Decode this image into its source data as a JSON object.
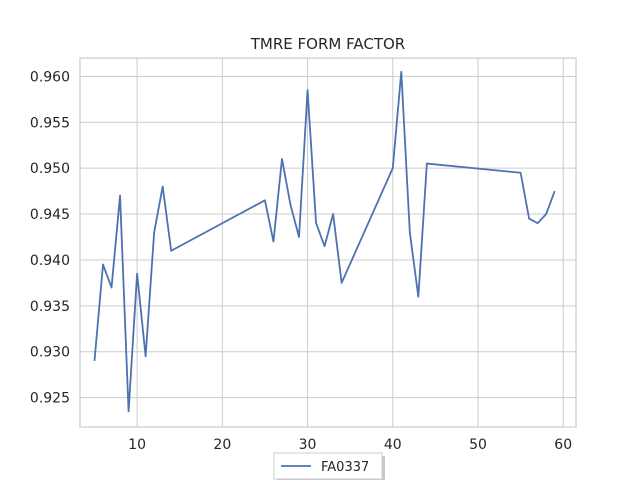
{
  "chart_data": {
    "type": "line",
    "title": "TMRE FORM FACTOR",
    "xlabel": "",
    "ylabel": "",
    "xlim": [
      3.3,
      61.5
    ],
    "ylim": [
      0.9218,
      0.962
    ],
    "x_ticks": [
      10,
      20,
      30,
      40,
      50,
      60
    ],
    "x_tick_labels": [
      "10",
      "20",
      "30",
      "40",
      "50",
      "60"
    ],
    "y_ticks": [
      0.925,
      0.93,
      0.935,
      0.94,
      0.945,
      0.95,
      0.955,
      0.96
    ],
    "y_tick_labels": [
      "0.925",
      "0.930",
      "0.935",
      "0.940",
      "0.945",
      "0.950",
      "0.955",
      "0.960"
    ],
    "grid": true,
    "legend_position": "bottom-center",
    "series": [
      {
        "name": "FA0337",
        "color": "#4c72b0",
        "x": [
          5,
          6,
          7,
          8,
          9,
          10,
          11,
          12,
          13,
          14,
          25,
          26,
          27,
          28,
          29,
          30,
          31,
          32,
          33,
          34,
          40,
          41,
          42,
          43,
          44,
          55,
          56,
          57,
          58,
          59
        ],
        "y": [
          0.929,
          0.9395,
          0.937,
          0.947,
          0.9235,
          0.9385,
          0.9295,
          0.943,
          0.948,
          0.941,
          0.9465,
          0.942,
          0.951,
          0.946,
          0.9425,
          0.9585,
          0.944,
          0.9415,
          0.945,
          0.9375,
          0.95,
          0.9605,
          0.943,
          0.936,
          0.9505,
          0.9495,
          0.9445,
          0.944,
          0.945,
          0.9475
        ]
      }
    ]
  }
}
